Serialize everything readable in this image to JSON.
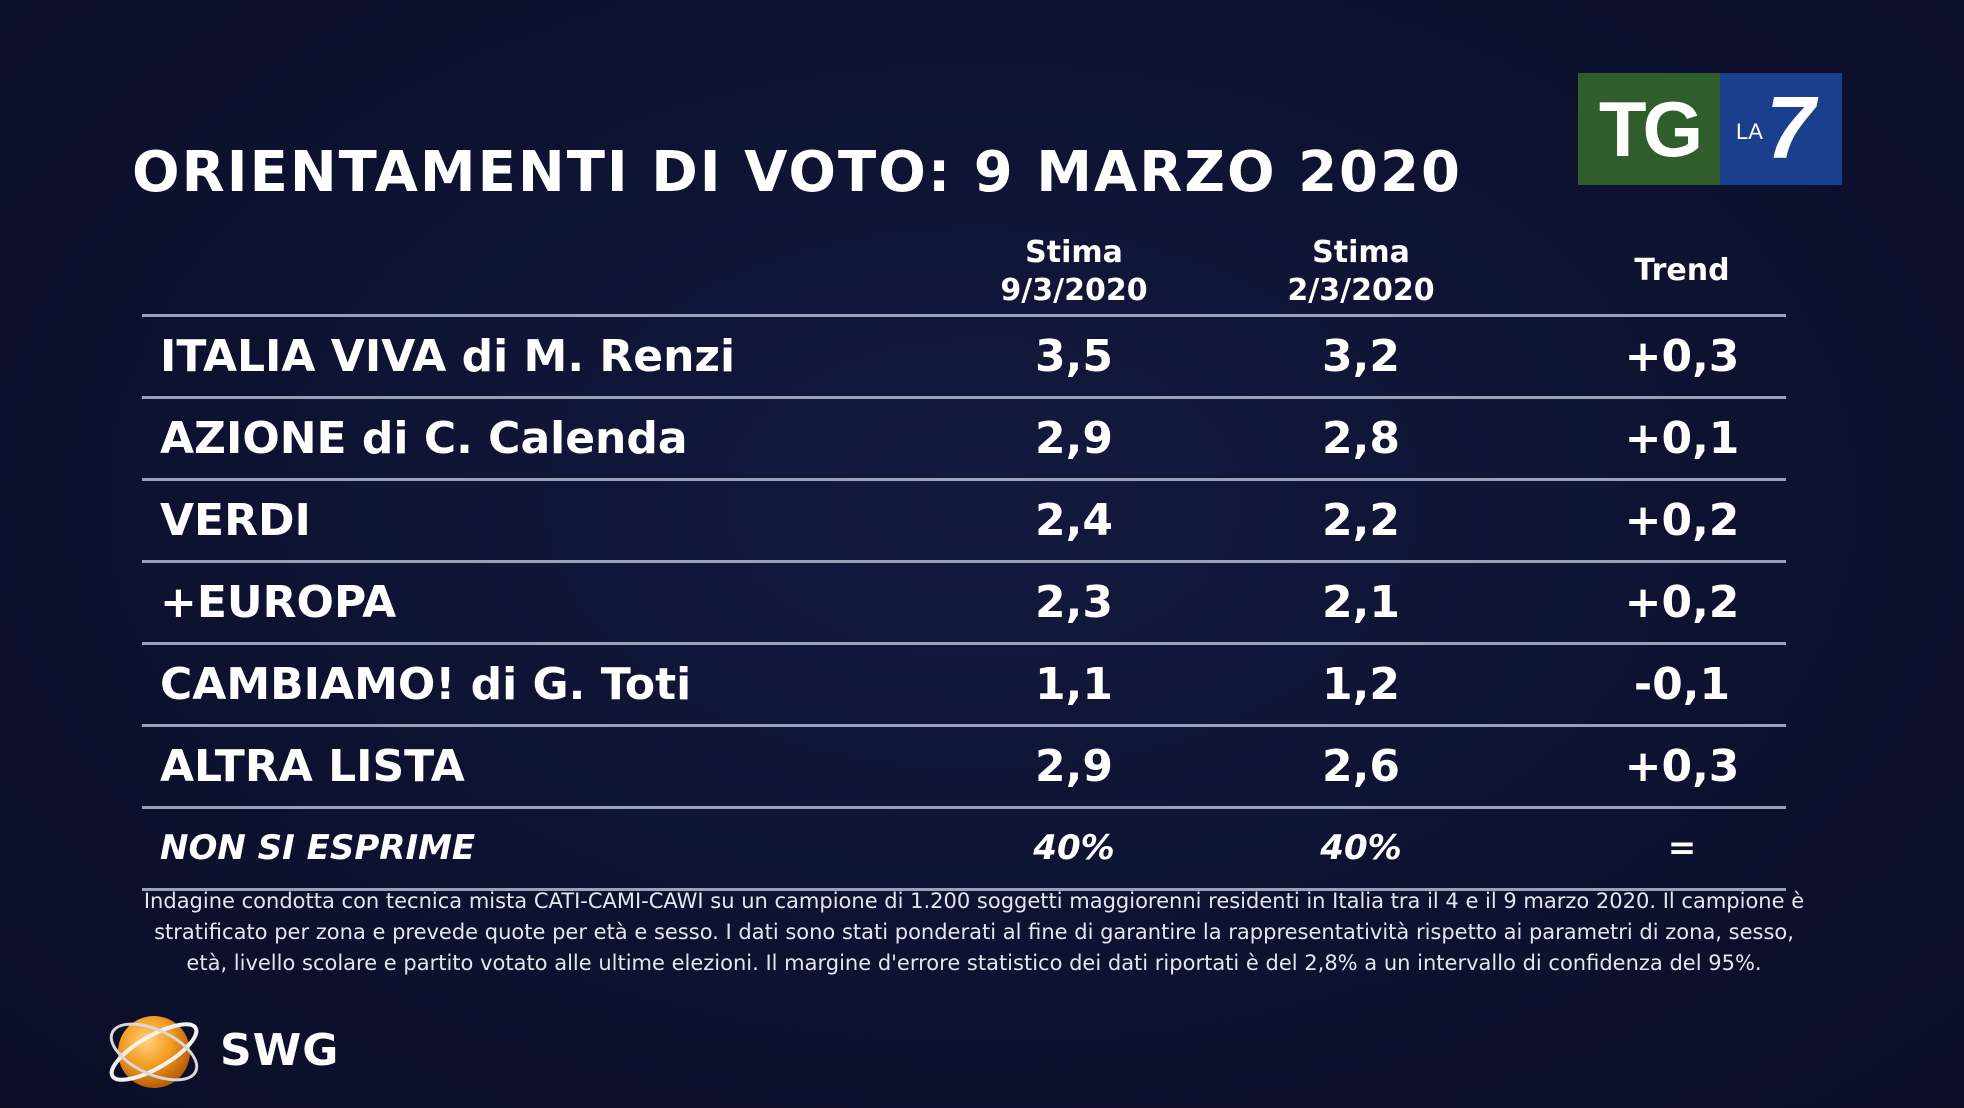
{
  "title": "ORIENTAMENTI DI VOTO: 9 MARZO 2020",
  "logo": {
    "tg": "TG",
    "la": "LA",
    "seven": "7"
  },
  "table": {
    "headers": {
      "col1_line1": "Stima",
      "col1_line2": "9/3/2020",
      "col2_line1": "Stima",
      "col2_line2": "2/3/2020",
      "col3": "Trend"
    },
    "rows": [
      {
        "name": "ITALIA VIVA di M. Renzi",
        "current": "3,5",
        "previous": "3,2",
        "trend": "+0,3"
      },
      {
        "name": "AZIONE di C. Calenda",
        "current": "2,9",
        "previous": "2,8",
        "trend": "+0,1"
      },
      {
        "name": "VERDI",
        "current": "2,4",
        "previous": "2,2",
        "trend": "+0,2"
      },
      {
        "name": "+EUROPA",
        "current": "2,3",
        "previous": "2,1",
        "trend": "+0,2"
      },
      {
        "name": "CAMBIAMO! di G. Toti",
        "current": "1,1",
        "previous": "1,2",
        "trend": "-0,1"
      },
      {
        "name": "ALTRA LISTA",
        "current": "2,9",
        "previous": "2,6",
        "trend": "+0,3"
      },
      {
        "name": "NON SI ESPRIME",
        "current": "40%",
        "previous": "40%",
        "trend": "="
      }
    ]
  },
  "footnote": "Indagine condotta con tecnica mista CATI-CAMI-CAWI su un campione di 1.200 soggetti maggiorenni residenti in Italia tra il 4 e il 9 marzo 2020. Il campione è stratificato per zona e prevede quote per età e sesso. I dati sono stati ponderati al fine di garantire la rappresentatività rispetto ai parametri di zona, sesso, età, livello scolare e partito votato alle ultime elezioni. Il margine d'errore statistico dei dati riportati è del 2,8% a un intervallo di confidenza del 95%.",
  "source": {
    "name": "SWG"
  },
  "colors": {
    "background": "#0d1231",
    "tg_green": "#2f5d2b",
    "la7_blue": "#1a3f8f",
    "rule": "#9aa0b8",
    "swg_orange": "#f39a1e"
  }
}
